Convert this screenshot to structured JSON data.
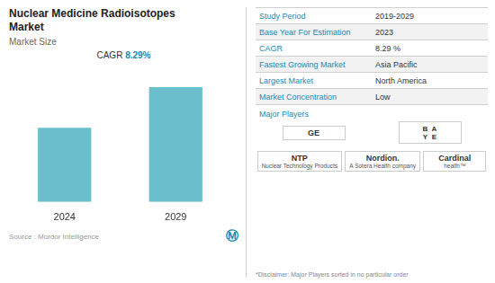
{
  "chart_data": {
    "type": "bar",
    "title": [
      "Nuclear Medicine Radioisotopes",
      "Market"
    ],
    "subtitle": "Market Size",
    "categories": [
      "2024",
      "2029"
    ],
    "values": [
      0.55,
      0.85
    ],
    "color": "#6bbfcc",
    "ylim": [
      0,
      1.05
    ],
    "grid": false,
    "tick_labels": "x",
    "annotations": {
      "cagr_label": "CAGR",
      "cagr_value": "8.29%",
      "source": "Source :  Mordor Intelligence",
      "logo": "Ⓜ",
      "major_players_label": "Major Players",
      "players": [
        [
          "GE"
        ],
        [
          "B",
          "A",
          "Y",
          "E"
        ],
        [
          "NTP",
          "Nuclear Technology Products"
        ],
        [
          "Nordion.",
          "A Sotera Health company"
        ],
        [
          "Cardinal",
          "health™"
        ]
      ],
      "disclaimer": "*Disclaimer: Major Players sorted in no particular order"
    },
    "table": [
      [
        "Study Period",
        "2019-2029"
      ],
      [
        "Base Year For Estimation",
        "2023"
      ],
      [
        "CAGR",
        "8.29 %"
      ],
      [
        "Fastest Growing Market",
        "Asia Pacific"
      ],
      [
        "Largest Market",
        "North America"
      ],
      [
        "Market Concentration",
        "Low"
      ]
    ]
  }
}
